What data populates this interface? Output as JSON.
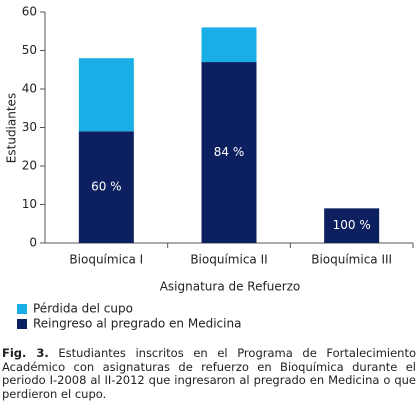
{
  "chart_data": {
    "type": "stacked_bar",
    "categories": [
      "Bioquímica I",
      "Bioquímica II",
      "Bioquímica III"
    ],
    "series": [
      {
        "name": "Pérdida del cupo",
        "color": "#1aaee6",
        "values": [
          19,
          9,
          0
        ]
      },
      {
        "name": "Reingreso al pregrado en Medicina",
        "color": "#0c1f5e",
        "values": [
          29,
          47,
          9
        ]
      }
    ],
    "annotations": [
      "60 %",
      "84 %",
      "100 %"
    ],
    "ylim": [
      0,
      60
    ],
    "yticks": [
      0,
      10,
      20,
      30,
      40,
      50,
      60
    ],
    "ylabel": "Estudiantes",
    "xlabel": "Asignatura de Refuerzo",
    "caption_label": "Fig. 3.",
    "caption": "Estudiantes inscritos en el Programa de Fortalecimiento Académico con asignaturas de refuerzo en Bioquímica durante el periodo I-2008 al II-2012 que ingresaron al pregrado en Medicina o que perdieron el cupo."
  }
}
